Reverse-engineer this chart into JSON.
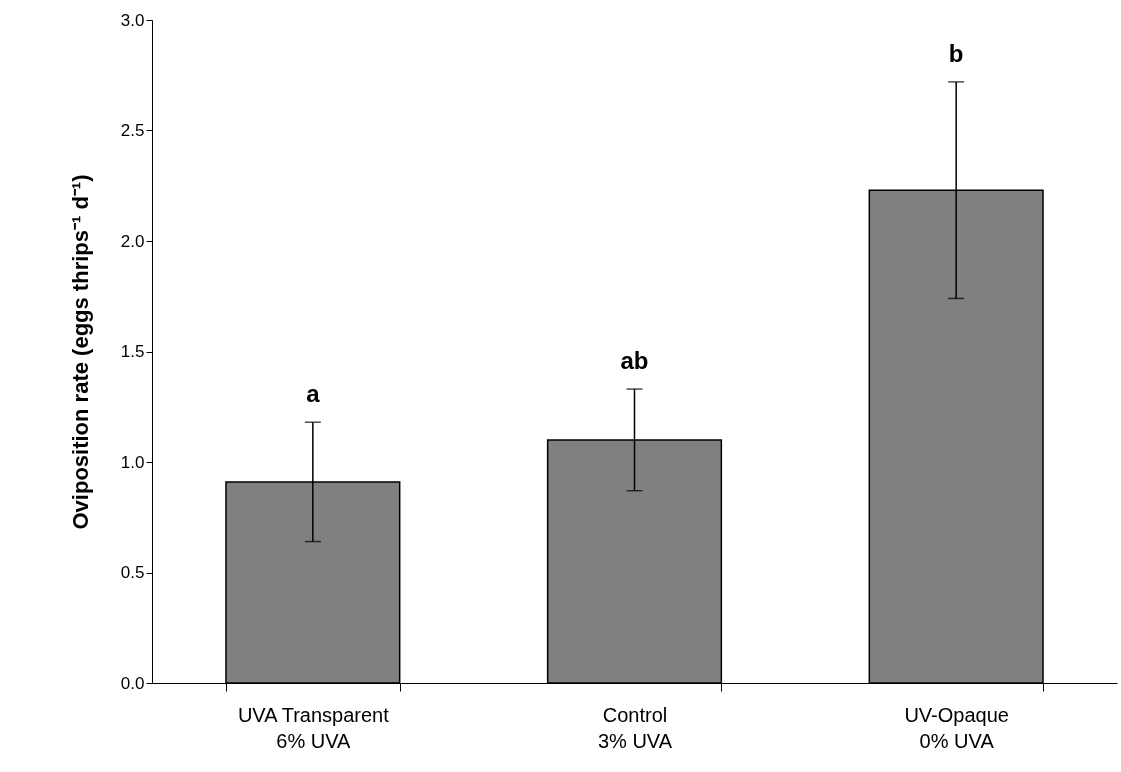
{
  "chart_data": {
    "type": "bar",
    "ylabel": "Oviposition rate (eggs thrips⁻¹ d⁻¹)",
    "categories": [
      "UVA Transparent\n6% UVA",
      "Control\n3% UVA",
      "UV-Opaque\n0% UVA"
    ],
    "values": [
      0.91,
      1.1,
      2.23
    ],
    "errors": [
      [
        0.64,
        1.18
      ],
      [
        0.87,
        1.33
      ],
      [
        1.74,
        2.72
      ]
    ],
    "color": "#808080",
    "ylim": [
      0,
      3.0
    ],
    "yticks": [
      {
        "value": 0,
        "label": "0.0"
      },
      {
        "value": 0.5,
        "label": "0.5"
      },
      {
        "value": 1.0,
        "label": "1.0"
      },
      {
        "value": 1.5,
        "label": "1.5"
      },
      {
        "value": 2.0,
        "label": "2.0"
      },
      {
        "value": 2.5,
        "label": "2.5"
      },
      {
        "value": 3.0,
        "label": "3.0"
      }
    ],
    "grid": false,
    "annotations": [
      "a",
      "ab",
      "b"
    ]
  }
}
